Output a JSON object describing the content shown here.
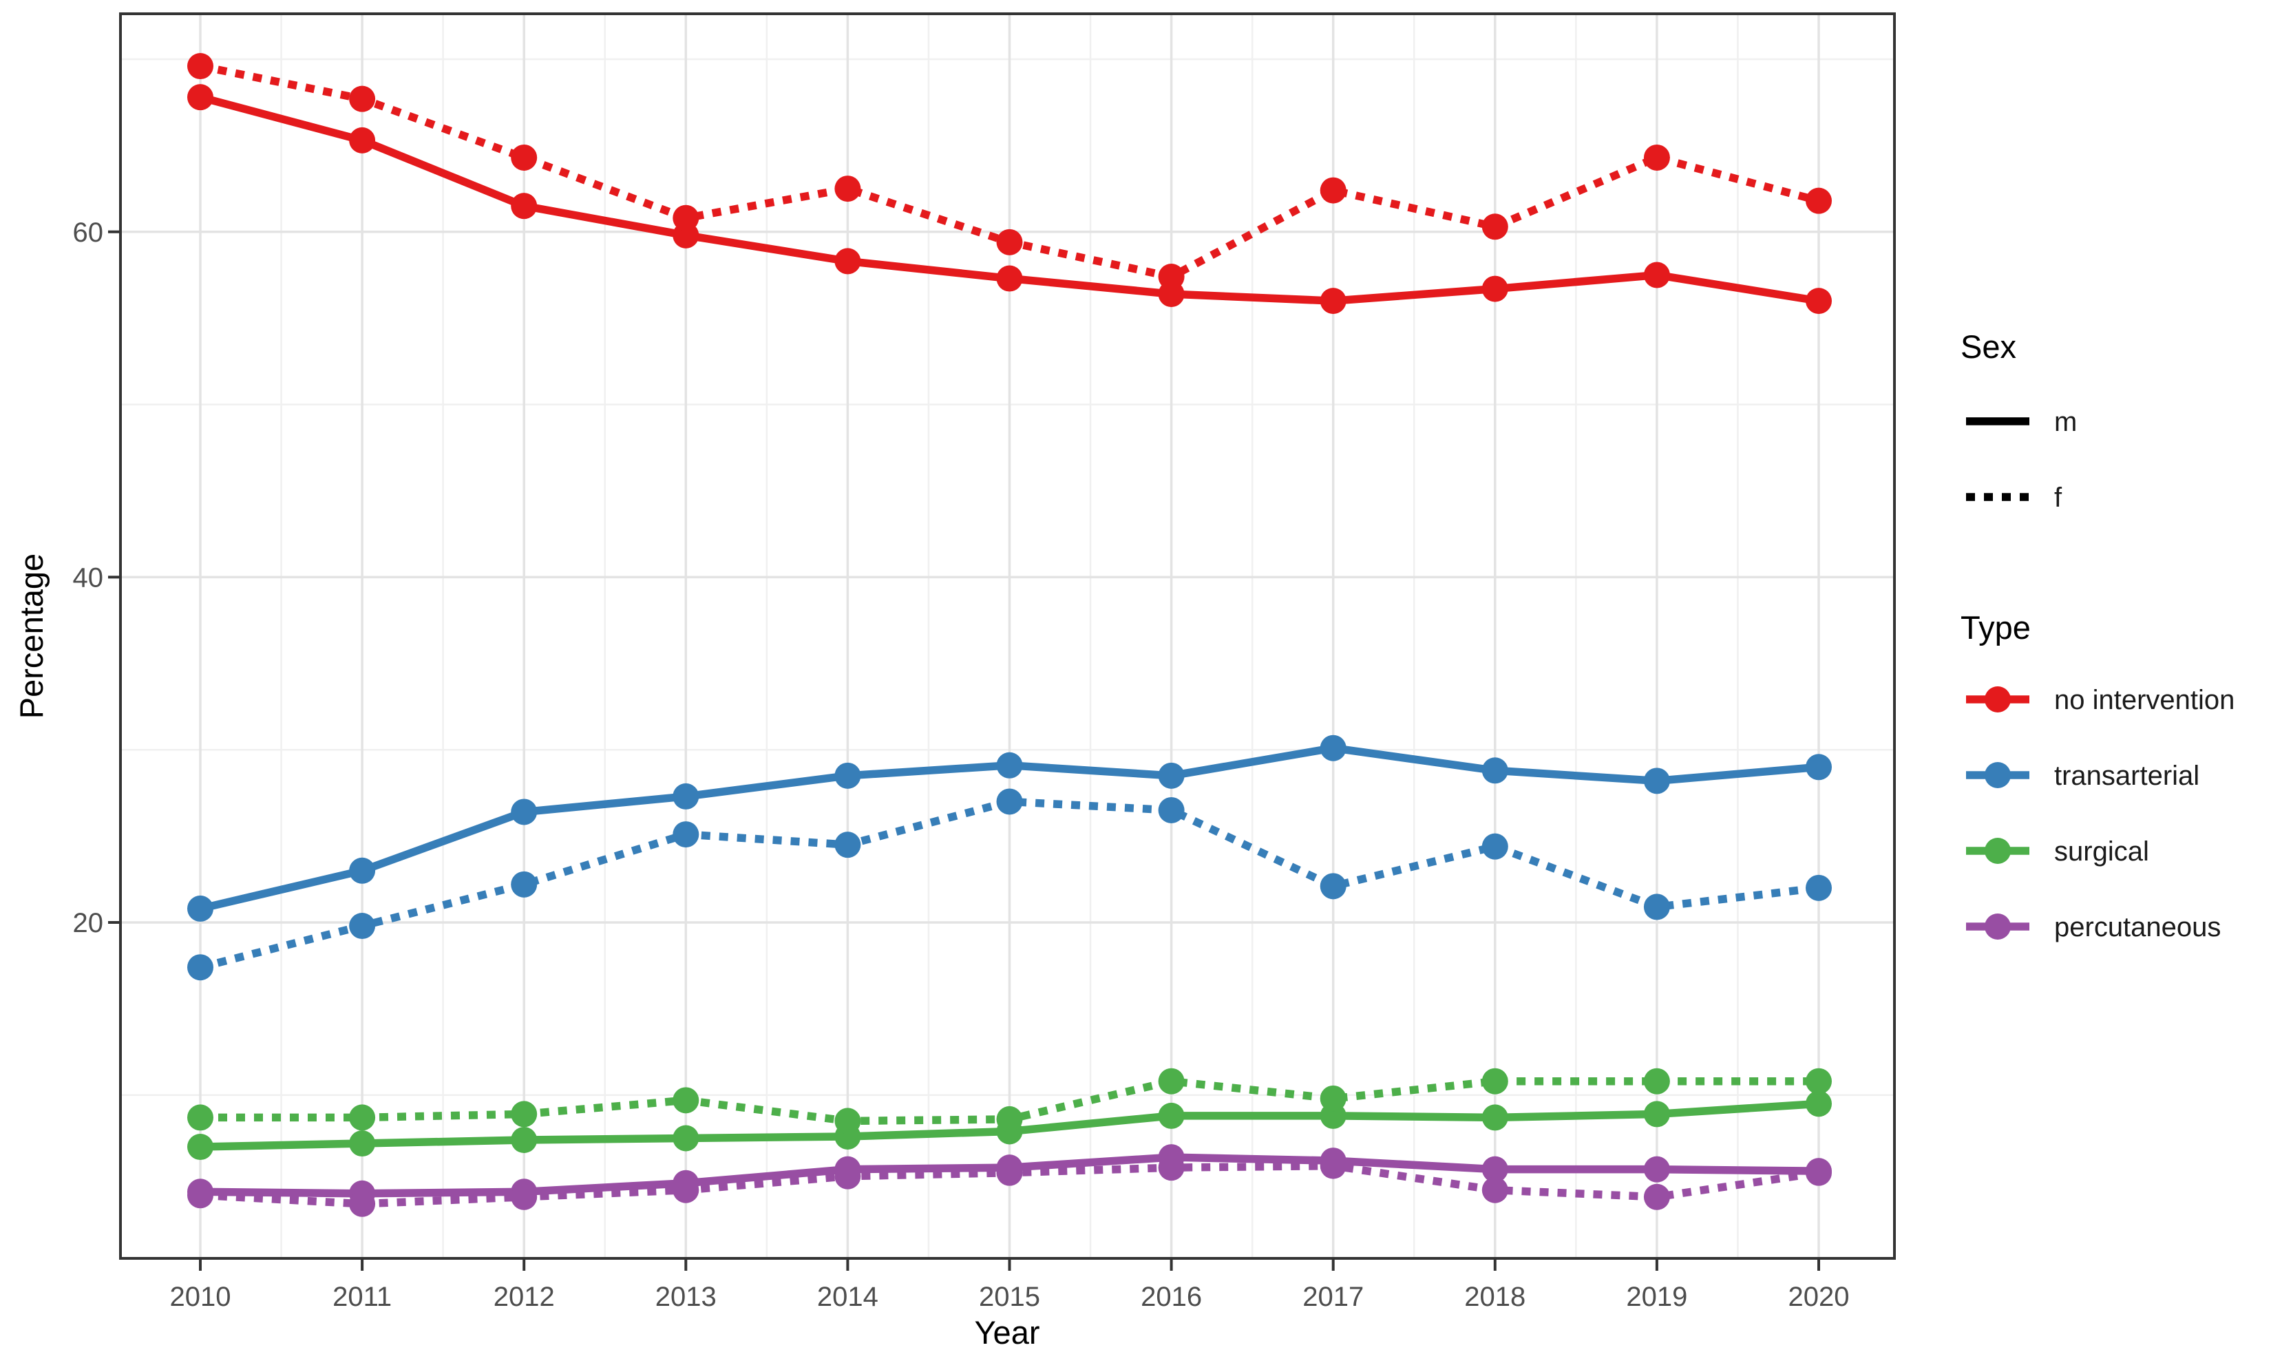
{
  "chart_data": {
    "type": "line",
    "title": "",
    "xlabel": "Year",
    "ylabel": "Percentage",
    "x": [
      2010,
      2011,
      2012,
      2013,
      2014,
      2015,
      2016,
      2017,
      2018,
      2019,
      2020
    ],
    "x_tick_labels": [
      "2010",
      "2011",
      "2012",
      "2013",
      "2014",
      "2015",
      "2016",
      "2017",
      "2018",
      "2019",
      "2020"
    ],
    "y_ticks": [
      20,
      40,
      60
    ],
    "y_tick_labels": [
      "20",
      "40",
      "60"
    ],
    "y_minor_ticks": [
      10,
      30,
      50,
      70
    ],
    "ylim": [
      0.5,
      72.6
    ],
    "grid": "major+minor",
    "legend_position": "right",
    "colors": {
      "no_intervention": "#e41a1c",
      "transarterial": "#377eb8",
      "surgical": "#4daf4a",
      "percutaneous": "#984ea3",
      "axis_text": "#4d4d4d",
      "panel_border": "#333333",
      "grid_major": "#e3e3e3",
      "grid_minor": "#f0f0f0"
    },
    "legend_sex": {
      "title": "Sex",
      "entries": [
        {
          "label": "m",
          "linetype": "solid"
        },
        {
          "label": "f",
          "linetype": "dotted"
        }
      ]
    },
    "legend_type": {
      "title": "Type",
      "entries": [
        {
          "label": "no intervention",
          "color": "#e41a1c"
        },
        {
          "label": "transarterial",
          "color": "#377eb8"
        },
        {
          "label": "surgical",
          "color": "#4daf4a"
        },
        {
          "label": "percutaneous",
          "color": "#984ea3"
        }
      ]
    },
    "series": [
      {
        "type": "no intervention",
        "sex": "m",
        "linetype": "solid",
        "color": "#e41a1c",
        "values": [
          67.8,
          65.3,
          61.5,
          59.8,
          58.3,
          57.3,
          56.4,
          56.0,
          56.7,
          57.5,
          56.0
        ]
      },
      {
        "type": "no intervention",
        "sex": "f",
        "linetype": "dotted",
        "color": "#e41a1c",
        "values": [
          69.6,
          67.7,
          64.3,
          60.8,
          62.5,
          59.4,
          57.4,
          62.4,
          60.3,
          64.3,
          61.8
        ]
      },
      {
        "type": "transarterial",
        "sex": "m",
        "linetype": "solid",
        "color": "#377eb8",
        "values": [
          20.8,
          23.0,
          26.4,
          27.3,
          28.5,
          29.1,
          28.5,
          30.1,
          28.8,
          28.2,
          29.0
        ]
      },
      {
        "type": "transarterial",
        "sex": "f",
        "linetype": "dotted",
        "color": "#377eb8",
        "values": [
          17.4,
          19.8,
          22.2,
          25.1,
          24.5,
          27.0,
          26.5,
          22.1,
          24.4,
          20.9,
          22.0
        ]
      },
      {
        "type": "surgical",
        "sex": "m",
        "linetype": "solid",
        "color": "#4daf4a",
        "values": [
          7.0,
          7.2,
          7.4,
          7.5,
          7.6,
          7.9,
          8.8,
          8.8,
          8.7,
          8.9,
          9.5
        ]
      },
      {
        "type": "surgical",
        "sex": "f",
        "linetype": "dotted",
        "color": "#4daf4a",
        "values": [
          8.7,
          8.7,
          8.9,
          9.7,
          8.5,
          8.6,
          10.8,
          9.8,
          10.8,
          10.8,
          10.8
        ]
      },
      {
        "type": "percutaneous",
        "sex": "m",
        "linetype": "solid",
        "color": "#984ea3",
        "values": [
          4.4,
          4.3,
          4.4,
          4.9,
          5.7,
          5.8,
          6.4,
          6.2,
          5.7,
          5.7,
          5.6
        ]
      },
      {
        "type": "percutaneous",
        "sex": "f",
        "linetype": "dotted",
        "color": "#984ea3",
        "values": [
          4.2,
          3.7,
          4.1,
          4.5,
          5.3,
          5.5,
          5.8,
          5.9,
          4.5,
          4.1,
          5.5
        ]
      }
    ]
  }
}
